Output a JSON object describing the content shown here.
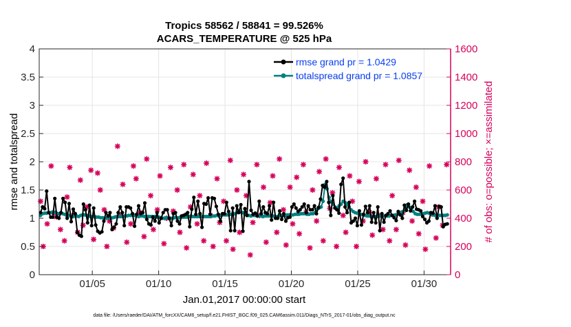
{
  "chart_data": {
    "type": "line",
    "title_line1": "Tropics 58562 / 58841 = 99.526%",
    "title_line2": "ACARS_TEMPERATURE @ 525 hPa",
    "xlabel": "Jan.01,2017 00:00:00 start",
    "ylabel_left": "rmse and totalspread",
    "ylabel_right": "# of obs: o=possible; ×=assimilated",
    "footer": "data file: /Users/raeder/DAI/ATM_forcXX/CAM6_setup/f.e21.FHIST_BGC.f09_025.CAM6assim.011/Diags_NTrS_2017-01/obs_diag_output.nc",
    "xlim": [
      1,
      32
    ],
    "ylim_left": [
      0,
      4
    ],
    "ylim_right": [
      0,
      1600
    ],
    "x_ticks": [
      5,
      10,
      15,
      20,
      25,
      30
    ],
    "x_tick_labels": [
      "01/05",
      "01/10",
      "01/15",
      "01/20",
      "01/25",
      "01/30"
    ],
    "y_left_ticks": [
      0,
      0.5,
      1,
      1.5,
      2,
      2.5,
      3,
      3.5,
      4
    ],
    "y_left_tick_labels": [
      "0",
      "0.5",
      "1",
      "1.5",
      "2",
      "2.5",
      "3",
      "3.5",
      "4"
    ],
    "y_right_ticks": [
      0,
      200,
      400,
      600,
      800,
      1000,
      1200,
      1400,
      1600
    ],
    "y_right_tick_labels": [
      "0",
      "200",
      "400",
      "600",
      "800",
      "1000",
      "1200",
      "1400",
      "1600"
    ],
    "legend": [
      "rmse grand pr = 1.0429",
      "totalspread grand pr = 1.0857"
    ],
    "colors": {
      "rmse": "#000000",
      "spread": "#00807f",
      "obs": "#d6005a",
      "legend_text": "#0a40f0"
    },
    "series": [
      {
        "name": "rmse",
        "values": [
          1.1,
          1.2,
          1.17,
          1.48,
          1.1,
          1.02,
          1.02,
          1.35,
          1.02,
          1.0,
          1.1,
          1.35,
          1.28,
          1.0,
          1.26,
          0.94,
          1.16,
          1.08,
          0.75,
          0.7,
          0.68,
          1.25,
          1.15,
          0.92,
          1.23,
          0.87,
          1.18,
          0.88,
          0.77,
          0.74,
          0.76,
          0.95,
          1.1,
          1.04,
          1.1,
          0.8,
          0.84,
          0.9,
          1.1,
          1.2,
          1.1,
          0.87,
          1.2,
          1.2,
          1.18,
          1.08,
          0.86,
          1.07,
          1.22,
          1.08,
          1.1,
          1.27,
          0.98,
          0.9,
          0.88,
          1.02,
          0.95,
          1.1,
          0.92,
          1.0,
          1.1,
          1.15,
          1.15,
          1.0,
          0.87,
          1.08,
          1.1,
          0.95,
          0.9,
          1.04,
          1.05,
          1.07,
          1.1,
          0.85,
          1.16,
          1.37,
          1.07,
          1.3,
          1.08,
          0.84,
          1.26,
          1.25,
          1.36,
          1.07,
          1.36,
          1.35,
          1.21,
          1.07,
          0.95,
          1.08,
          1.08,
          1.28,
          1.12,
          0.78,
          1.18,
          0.78,
          1.22,
          1.1,
          1.24,
          0.77,
          1.17,
          1.05,
          1.65,
          1.14,
          1.07,
          1.09,
          1.04,
          1.3,
          1.08,
          1.2,
          1.1,
          1.08,
          1.22,
          0.97,
          1.28,
          1.0,
          1.0,
          1.13,
          0.98,
          1.08,
          0.95,
          1.01,
          1.02,
          1.2,
          1.25,
          1.18,
          1.12,
          1.15,
          1.2,
          1.25,
          1.1,
          1.22,
          1.15,
          1.15,
          1.22,
          1.08,
          1.19,
          1.34,
          1.58,
          1.55,
          1.65,
          1.28,
          1.05,
          1.4,
          1.18,
          1.15,
          1.09,
          1.6,
          1.71,
          1.2,
          1.1,
          1.28,
          0.92,
          0.95,
          1.0,
          0.87,
          1.13,
          0.88,
          1.07,
          1.21,
          1.1,
          1.22,
          0.93,
          1.1,
          0.92,
          1.2,
          0.78,
          1.08,
          0.93,
          1.05,
          1.08,
          1.13,
          1.05,
          1.01,
          0.96,
          1.12,
          1.06,
          1.0,
          1.23,
          1.14,
          1.25,
          1.13,
          1.2,
          1.3,
          1.16,
          1.15,
          1.13,
          1.03,
          0.98,
          0.92,
          0.95,
          1.1,
          1.09,
          1.22,
          1.0,
          1.21,
          1.2,
          0.85,
          0.89,
          0.9
        ]
      },
      {
        "name": "totalspread",
        "values": [
          1.05,
          1.08,
          1.09,
          1.09,
          1.1,
          1.1,
          1.11,
          1.1,
          1.09,
          1.08,
          1.09,
          1.08,
          1.07,
          1.05,
          1.05,
          1.04,
          1.03,
          1.04,
          1.04,
          1.03,
          1.05,
          1.06,
          1.06,
          1.05,
          1.04,
          1.03,
          1.03,
          1.03,
          1.02,
          1.02,
          1.01,
          1.01,
          1.0,
          1.0,
          1.01,
          1.0,
          1.01,
          1.02,
          1.03,
          1.03,
          1.03,
          1.03,
          1.04,
          1.04,
          1.05,
          1.05,
          1.05,
          1.05,
          1.04,
          1.03,
          1.04,
          1.04,
          1.03,
          1.03,
          1.03,
          1.03,
          1.03,
          1.03,
          1.02,
          1.02,
          1.01,
          1.0,
          1.0,
          1.01,
          1.0,
          1.0,
          1.0,
          1.01,
          1.01,
          1.01,
          1.02,
          1.02,
          1.02,
          1.02,
          1.03,
          1.04,
          1.03,
          1.03,
          1.03,
          1.03,
          1.03,
          1.03,
          1.03,
          1.03,
          1.03,
          1.03,
          1.04,
          1.04,
          1.05,
          1.04,
          1.05,
          1.06,
          1.06,
          1.06,
          1.06,
          1.07,
          1.07,
          1.08,
          1.1,
          1.12,
          1.11,
          1.1,
          1.07,
          1.05,
          1.05,
          1.04,
          1.05,
          1.05,
          1.05,
          1.04,
          1.04,
          1.03,
          1.04,
          1.04,
          1.04,
          1.04,
          1.04,
          1.03,
          1.03,
          1.04,
          1.05,
          1.05,
          1.05,
          1.06,
          1.06,
          1.06,
          1.06,
          1.07,
          1.07,
          1.07,
          1.08,
          1.08,
          1.08,
          1.07,
          1.07,
          1.08,
          1.08,
          1.1,
          1.16,
          1.18,
          1.2,
          1.3,
          1.6,
          1.52,
          1.37,
          1.29,
          1.25,
          1.2,
          1.18,
          1.22,
          1.25,
          1.3,
          1.28,
          1.25,
          1.2,
          1.15,
          1.12,
          1.1,
          1.09,
          1.08,
          1.07,
          1.06,
          1.05,
          1.04,
          1.04,
          1.03,
          1.03,
          1.03,
          1.03,
          1.04,
          1.04,
          1.04,
          1.04,
          1.04,
          1.04,
          1.05,
          1.05,
          1.06,
          1.07,
          1.08,
          1.1,
          1.12,
          1.2,
          1.24,
          1.2,
          1.16,
          1.12,
          1.08,
          1.07,
          1.07,
          1.07,
          1.08,
          1.09,
          1.1,
          1.09,
          1.07,
          1.06,
          1.05,
          1.05,
          1.05,
          1.05,
          1.05,
          1.05,
          1.06
        ]
      }
    ],
    "obs_counts": {
      "x": [
        1.1,
        1.3,
        1.6,
        1.9,
        2.1,
        2.3,
        2.6,
        2.9,
        3.1,
        3.3,
        3.6,
        3.9,
        4.1,
        4.3,
        4.6,
        4.9,
        5.1,
        5.4,
        5.6,
        5.9,
        6.1,
        6.3,
        6.6,
        6.9,
        7.1,
        7.3,
        7.6,
        7.9,
        8.1,
        8.3,
        8.6,
        8.9,
        9.1,
        9.4,
        9.6,
        9.9,
        10.1,
        10.4,
        10.6,
        10.9,
        11.1,
        11.4,
        11.6,
        11.9,
        12.1,
        12.4,
        12.6,
        12.9,
        13.1,
        13.4,
        13.6,
        13.9,
        14.1,
        14.4,
        14.6,
        14.9,
        15.1,
        15.4,
        15.6,
        15.9,
        16.1,
        16.4,
        16.6,
        16.9,
        17.1,
        17.4,
        17.6,
        17.9,
        18.1,
        18.4,
        18.6,
        18.9,
        19.1,
        19.4,
        19.6,
        19.9,
        20.1,
        20.4,
        20.6,
        20.9,
        21.1,
        21.4,
        21.6,
        21.9,
        22.1,
        22.4,
        22.6,
        22.9,
        23.1,
        23.4,
        23.6,
        23.9,
        24.1,
        24.4,
        24.6,
        24.9,
        25.1,
        25.4,
        25.6,
        25.9,
        26.1,
        26.4,
        26.6,
        26.9,
        27.1,
        27.4,
        27.6,
        27.9,
        28.1,
        28.4,
        28.6,
        28.9,
        29.1,
        29.4,
        29.6,
        29.9,
        30.1,
        30.4,
        30.6,
        30.9,
        31.1,
        31.4,
        31.7
      ],
      "assimilated": [
        520,
        200,
        360,
        770,
        440,
        410,
        320,
        240,
        550,
        760,
        420,
        300,
        670,
        350,
        480,
        740,
        250,
        720,
        600,
        460,
        200,
        380,
        330,
        910,
        420,
        640,
        230,
        360,
        770,
        680,
        440,
        270,
        820,
        560,
        320,
        460,
        700,
        220,
        400,
        760,
        450,
        600,
        300,
        780,
        190,
        480,
        710,
        360,
        560,
        240,
        790,
        420,
        200,
        680,
        370,
        520,
        240,
        810,
        180,
        600,
        300,
        710,
        560,
        140,
        370,
        780,
        420,
        620,
        230,
        510,
        700,
        300,
        820,
        460,
        210,
        620,
        360,
        690,
        290,
        780,
        440,
        190,
        600,
        380,
        730,
        240,
        820,
        470,
        580,
        200,
        760,
        420,
        300,
        700,
        520,
        200,
        660,
        380,
        800,
        440,
        280,
        680,
        420,
        320,
        780,
        240,
        560,
        320,
        810,
        440,
        210,
        740,
        380,
        620,
        290,
        520,
        180,
        770,
        430,
        260,
        480,
        350,
        780
      ]
    }
  }
}
